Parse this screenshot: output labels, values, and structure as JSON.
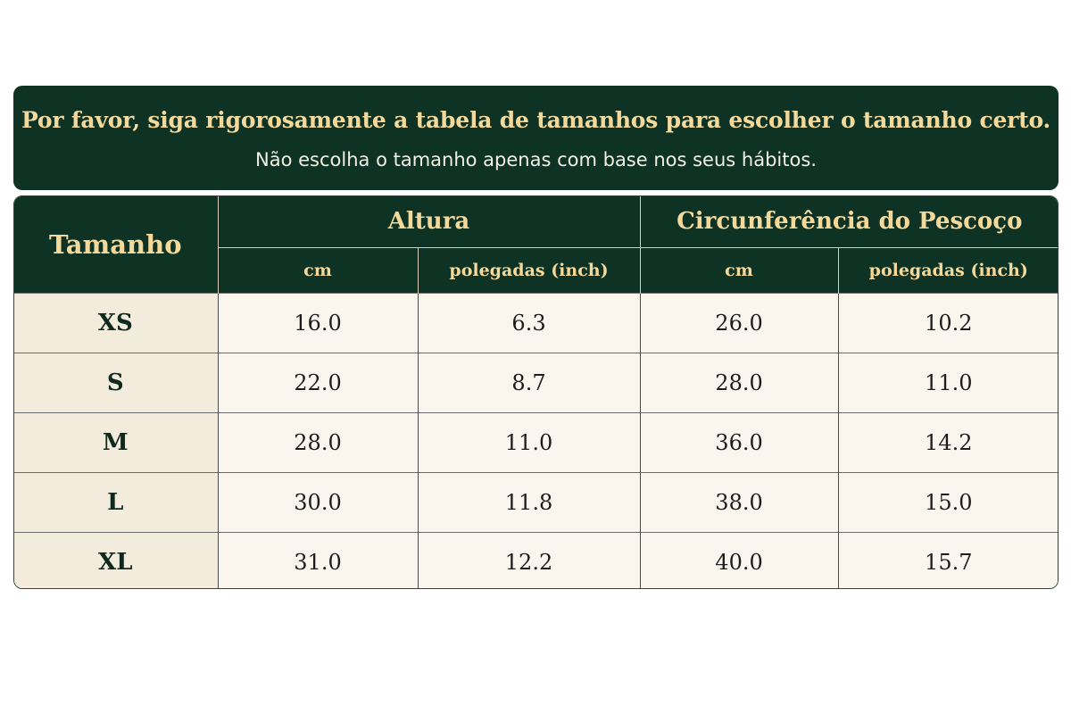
{
  "banner": {
    "title": "Por favor, siga rigorosamente a tabela de tamanhos para escolher o tamanho certo.",
    "subtitle": "Não escolha o tamanho apenas com base nos seus hábitos."
  },
  "table": {
    "size_header": "Tamanho",
    "groups": [
      "Altura",
      "Circunferência do Pescoço"
    ],
    "units": [
      "cm",
      "polegadas (inch)",
      "cm",
      "polegadas (inch)"
    ],
    "rows": [
      {
        "size": "XS",
        "values": [
          "16.0",
          "6.3",
          "26.0",
          "10.2"
        ]
      },
      {
        "size": "S",
        "values": [
          "22.0",
          "8.7",
          "28.0",
          "11.0"
        ]
      },
      {
        "size": "M",
        "values": [
          "28.0",
          "11.0",
          "36.0",
          "14.2"
        ]
      },
      {
        "size": "L",
        "values": [
          "30.0",
          "11.8",
          "38.0",
          "15.0"
        ]
      },
      {
        "size": "XL",
        "values": [
          "31.0",
          "12.2",
          "40.0",
          "15.7"
        ]
      }
    ]
  },
  "colors": {
    "header_bg": "#0e3324",
    "header_text": "#f4d99b",
    "body_bg": "#faf6ee",
    "size_col_bg": "#f3ebdc"
  }
}
